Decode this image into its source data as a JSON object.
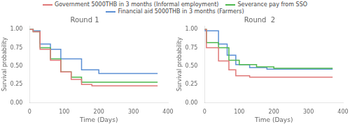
{
  "chart_data": [
    {
      "type": "step",
      "title": "Round 1",
      "x_label": "Time (Days)",
      "y_label": "Survival probability",
      "xlim": [
        0,
        400
      ],
      "xticks": [
        0,
        100,
        200,
        300,
        400
      ],
      "ylim": [
        0.0,
        1.05
      ],
      "yticks": [
        {
          "value": 0,
          "label": "0.00"
        },
        0.25,
        {
          "value": 0.5,
          "label": "0.50"
        },
        0.75,
        {
          "value": 1,
          "label": "1.00"
        }
      ],
      "grid": false,
      "legend": "top",
      "series": [
        {
          "name": "Government 5000THB in 3 months (Informal employment)",
          "color": "#e07878",
          "x": [
            0,
            10,
            10,
            30,
            30,
            60,
            60,
            90,
            90,
            120,
            120,
            150,
            150,
            180,
            180,
            370
          ],
          "values": [
            1.0,
            1.0,
            0.97,
            0.97,
            0.73,
            0.73,
            0.58,
            0.58,
            0.42,
            0.42,
            0.32,
            0.32,
            0.25,
            0.25,
            0.23,
            0.23
          ]
        },
        {
          "name": "Severance pay from SSO",
          "color": "#4db84d",
          "x": [
            0,
            10,
            10,
            30,
            30,
            60,
            60,
            90,
            90,
            120,
            120,
            150,
            150,
            370
          ],
          "values": [
            1.0,
            1.0,
            0.97,
            0.97,
            0.75,
            0.75,
            0.6,
            0.6,
            0.42,
            0.42,
            0.35,
            0.35,
            0.28,
            0.28
          ]
        },
        {
          "name": "Financial aid 5000THB in 3 months (Farmers)",
          "color": "#5b8fd4",
          "x": [
            0,
            10,
            10,
            30,
            30,
            60,
            60,
            90,
            90,
            150,
            150,
            200,
            200,
            370
          ],
          "values": [
            1.0,
            1.0,
            0.98,
            0.98,
            0.8,
            0.8,
            0.73,
            0.73,
            0.6,
            0.6,
            0.45,
            0.45,
            0.4,
            0.4
          ]
        }
      ]
    },
    {
      "type": "step",
      "title": "Round  2",
      "x_label": "Time (Days)",
      "y_label": "Survival probability",
      "xlim": [
        0,
        400
      ],
      "xticks": [
        0,
        100,
        200,
        300,
        400
      ],
      "ylim": [
        0.0,
        1.05
      ],
      "yticks": [
        {
          "value": 0,
          "label": "0.00"
        },
        0.25,
        {
          "value": 0.5,
          "label": "0.50"
        },
        0.75,
        {
          "value": 1,
          "label": "1.00"
        }
      ],
      "grid": false,
      "legend": "top",
      "series": [
        {
          "name": "Government 5000THB in 3 months (Informal employment)",
          "color": "#e07878",
          "x": [
            0,
            5,
            5,
            40,
            40,
            70,
            70,
            90,
            90,
            130,
            130,
            370
          ],
          "values": [
            1.0,
            1.0,
            0.75,
            0.75,
            0.57,
            0.57,
            0.45,
            0.45,
            0.37,
            0.37,
            0.35,
            0.35
          ]
        },
        {
          "name": "Severance pay from SSO",
          "color": "#4db84d",
          "x": [
            0,
            5,
            5,
            40,
            40,
            70,
            70,
            100,
            100,
            150,
            150,
            200,
            200,
            370
          ],
          "values": [
            1.0,
            1.0,
            0.82,
            0.82,
            0.75,
            0.75,
            0.58,
            0.58,
            0.52,
            0.52,
            0.49,
            0.49,
            0.47,
            0.47
          ]
        },
        {
          "name": "Financial aid 5000THB in 3 months (Farmers)",
          "color": "#5b8fd4",
          "x": [
            0,
            1,
            1,
            40,
            40,
            65,
            65,
            90,
            90,
            130,
            130,
            180,
            180,
            370
          ],
          "values": [
            1.0,
            1.0,
            0.98,
            0.98,
            0.8,
            0.8,
            0.65,
            0.65,
            0.52,
            0.52,
            0.48,
            0.48,
            0.46,
            0.46
          ]
        }
      ]
    }
  ]
}
